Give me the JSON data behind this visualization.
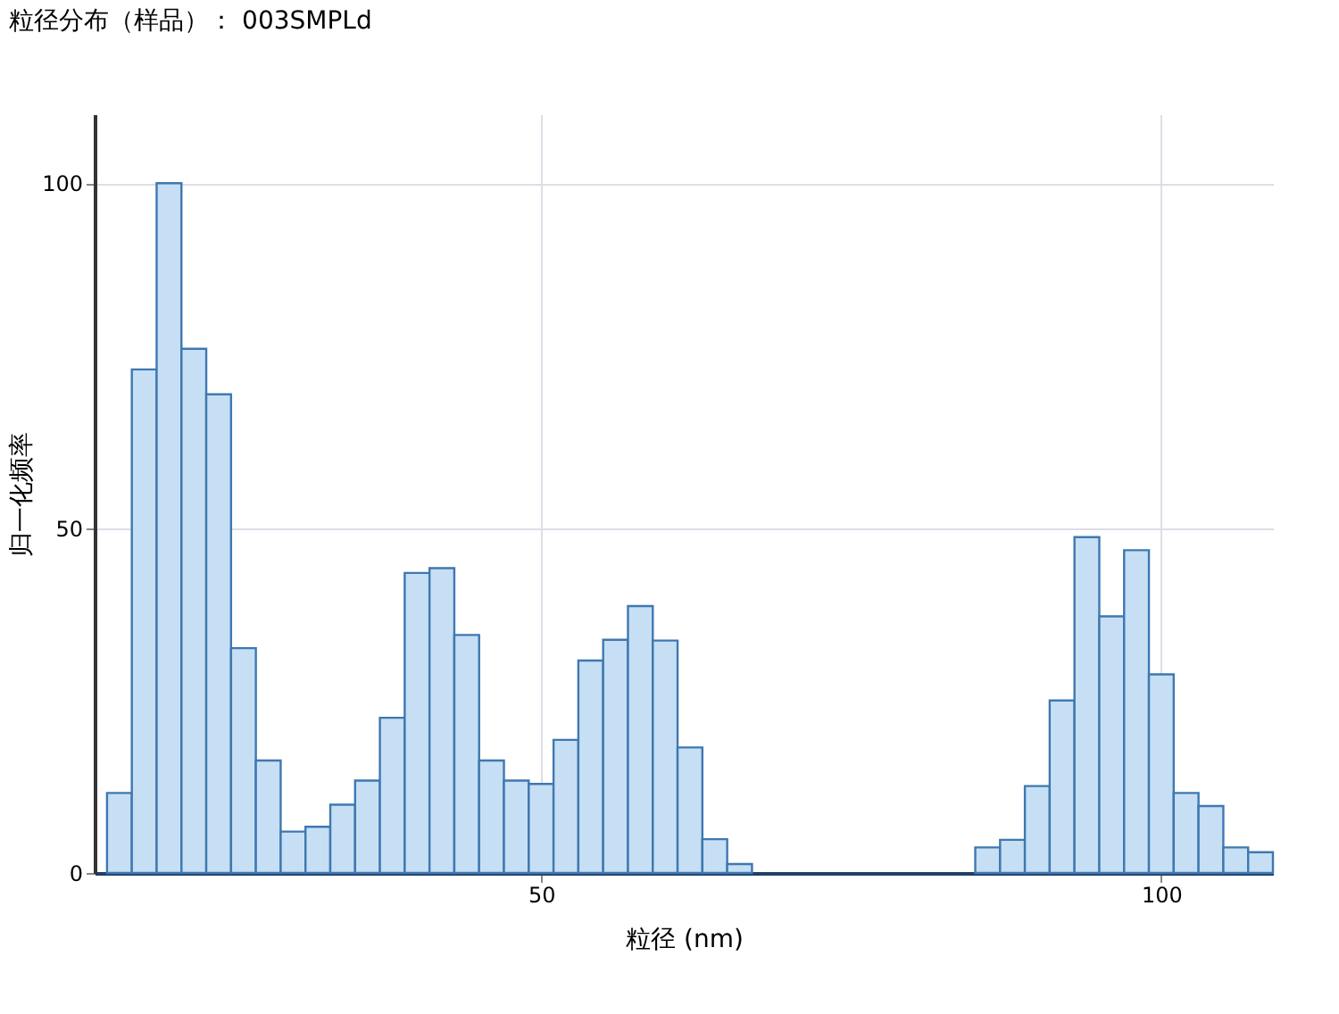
{
  "chart_data": {
    "type": "histogram",
    "title": "粒径分布（样品）： 003SMPLd",
    "xlabel": "粒径 (nm)",
    "ylabel": "归一化频率",
    "bins": [
      15,
      17,
      19,
      21,
      23,
      25,
      27,
      29,
      31,
      33,
      35,
      37,
      39,
      41,
      43,
      45,
      47,
      49,
      51,
      53,
      55,
      57,
      59,
      61,
      63,
      65,
      67,
      69,
      71,
      73,
      75,
      77,
      79,
      81,
      83,
      85,
      87,
      89,
      91,
      93,
      95,
      97,
      99,
      101,
      103,
      105,
      107,
      109
    ],
    "values": [
      11.6,
      73,
      100,
      76,
      69.4,
      32.6,
      16.3,
      6,
      6.7,
      9.9,
      13.4,
      22.5,
      43.5,
      44.2,
      34.5,
      16.3,
      13.4,
      12.9,
      19.3,
      30.8,
      33.8,
      38.7,
      33.7,
      18.2,
      4.9,
      1.3,
      0,
      0,
      0,
      0,
      0,
      0,
      0,
      0,
      0,
      3.7,
      4.8,
      12.6,
      25,
      48.7,
      37.2,
      46.8,
      28.8,
      11.6,
      9.7,
      3.7,
      3
    ],
    "color": "#c6dff5",
    "xlim": [
      14,
      109
    ],
    "ylim": [
      0,
      110
    ],
    "xticks": [
      50,
      100
    ],
    "yticks": [
      0,
      50,
      100
    ],
    "grid": true
  }
}
